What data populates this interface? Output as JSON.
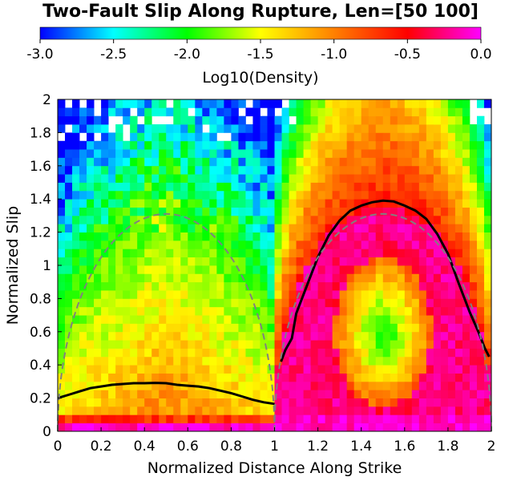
{
  "chart_data": {
    "type": "heatmap",
    "title": "Two-Fault Slip Along Rupture, Len=[50 100]",
    "xlabel": "Normalized Distance Along Strike",
    "ylabel": "Normalized Slip",
    "xlim": [
      0,
      2
    ],
    "ylim": [
      0,
      2
    ],
    "x_ticks": [
      "0",
      "0.2",
      "0.4",
      "0.6",
      "0.8",
      "1",
      "1.2",
      "1.4",
      "1.6",
      "1.8",
      "2"
    ],
    "y_ticks": [
      "0",
      "0.2",
      "0.4",
      "0.6",
      "0.8",
      "1",
      "1.2",
      "1.4",
      "1.6",
      "1.8",
      "2"
    ],
    "colorbar": {
      "label": "Log10(Density)",
      "range": [
        -3.0,
        0.0
      ],
      "ticks": [
        "-3.0",
        "-2.5",
        "-2.0",
        "-1.5",
        "-1.0",
        "-0.5",
        "0.0"
      ],
      "colors": [
        "#0000ff",
        "#00ffff",
        "#00ff00",
        "#ffff00",
        "#ff8000",
        "#ff0000",
        "#ff00ff"
      ]
    },
    "series": [
      {
        "style": "solid-black",
        "x": [
          0.0,
          0.05,
          0.1,
          0.15,
          0.2,
          0.25,
          0.3,
          0.35,
          0.4,
          0.45,
          0.5,
          0.55,
          0.6,
          0.65,
          0.7,
          0.75,
          0.8,
          0.85,
          0.9,
          0.95,
          1.0
        ],
        "y": [
          0.2,
          0.22,
          0.24,
          0.26,
          0.27,
          0.28,
          0.285,
          0.29,
          0.29,
          0.292,
          0.29,
          0.28,
          0.275,
          0.27,
          0.26,
          0.245,
          0.23,
          0.21,
          0.19,
          0.175,
          0.165
        ]
      },
      {
        "style": "solid-black",
        "x": [
          1.03,
          1.05,
          1.08,
          1.1,
          1.15,
          1.2,
          1.25,
          1.3,
          1.35,
          1.4,
          1.45,
          1.5,
          1.55,
          1.6,
          1.65,
          1.7,
          1.75,
          1.8,
          1.85,
          1.9,
          1.94,
          1.97,
          1.99
        ],
        "y": [
          0.42,
          0.49,
          0.56,
          0.71,
          0.88,
          1.05,
          1.18,
          1.27,
          1.33,
          1.36,
          1.38,
          1.39,
          1.385,
          1.36,
          1.33,
          1.28,
          1.19,
          1.07,
          0.89,
          0.72,
          0.6,
          0.5,
          0.45
        ]
      },
      {
        "style": "dashed-gray",
        "x": [
          0.0,
          0.5,
          1.0
        ],
        "y": [
          0.0,
          1.31,
          0.0
        ],
        "shape": "half-ellipse"
      },
      {
        "style": "dashed-gray",
        "x": [
          1.0,
          1.5,
          2.0
        ],
        "y": [
          0.0,
          1.31,
          0.0
        ],
        "shape": "half-ellipse"
      }
    ]
  }
}
